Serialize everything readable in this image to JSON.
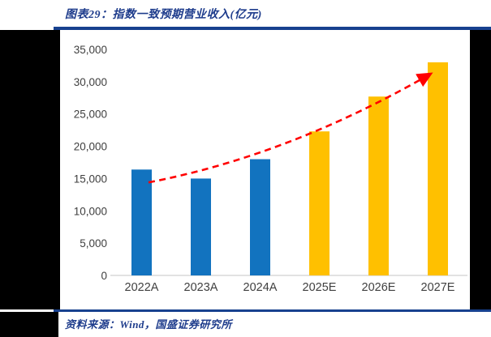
{
  "title": {
    "label": "图表29：指数一致预期营业收入(亿元)"
  },
  "footer": {
    "label": "资料来源：Wind，国盛证券研究所"
  },
  "colors": {
    "accent_navy": "#17418f",
    "title_text": "#1e3c8c",
    "bar_blue": "#1273bf",
    "bar_gold": "#ffc000",
    "trend_red": "#ff0000",
    "axis_line": "#d9d9d9",
    "tick_text": "#3f3f3f"
  },
  "chart_data": {
    "type": "bar",
    "title": "指数一致预期营业收入(亿元)",
    "categories": [
      "2022A",
      "2023A",
      "2024A",
      "2025E",
      "2026E",
      "2027E"
    ],
    "values": [
      16400,
      15000,
      18000,
      22300,
      27700,
      33000
    ],
    "bar_colors": [
      "#1273bf",
      "#1273bf",
      "#1273bf",
      "#ffc000",
      "#ffc000",
      "#ffc000"
    ],
    "xlabel": "",
    "ylabel": "",
    "ylim": [
      0,
      35000
    ],
    "ytick_step": 5000,
    "yticks": [
      "0",
      "5,000",
      "10,000",
      "15,000",
      "20,000",
      "25,000",
      "30,000",
      "35,000"
    ],
    "grid": false,
    "legend": false,
    "trendline": {
      "style": "dashed",
      "arrow": true,
      "color": "#ff0000",
      "start_category": "2022A",
      "start_value": 14400,
      "end_category": "2027E",
      "end_value": 31100
    }
  }
}
